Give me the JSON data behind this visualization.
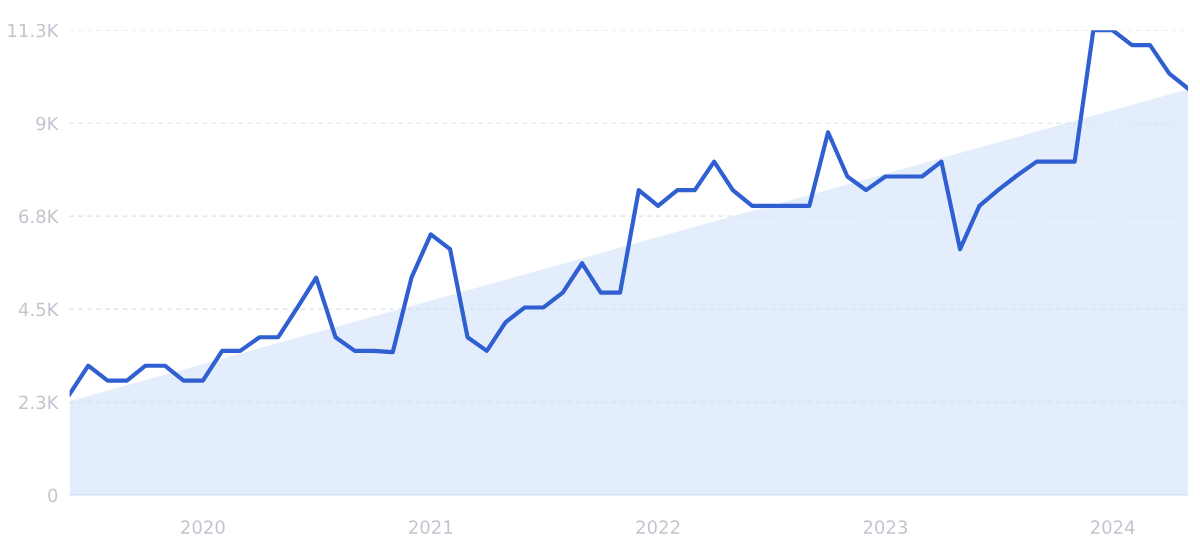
{
  "chart_data": {
    "type": "line",
    "x": [
      "2019-06",
      "2019-07",
      "2019-08",
      "2019-09",
      "2019-10",
      "2019-11",
      "2019-12",
      "2020-01",
      "2020-02",
      "2020-03",
      "2020-04",
      "2020-05",
      "2020-06",
      "2020-07",
      "2020-08",
      "2020-09",
      "2020-10",
      "2020-11",
      "2020-12",
      "2021-01",
      "2021-02",
      "2021-03",
      "2021-04",
      "2021-05",
      "2021-06",
      "2021-07",
      "2021-08",
      "2021-09",
      "2021-10",
      "2021-11",
      "2021-12",
      "2022-01",
      "2022-02",
      "2022-03",
      "2022-04",
      "2022-05",
      "2022-06",
      "2022-07",
      "2022-08",
      "2022-09",
      "2022-10",
      "2022-11",
      "2022-12",
      "2023-01",
      "2023-02",
      "2023-03",
      "2023-04",
      "2023-05",
      "2023-06",
      "2023-07",
      "2023-08",
      "2023-09",
      "2023-10",
      "2023-11",
      "2023-12",
      "2024-01",
      "2024-02",
      "2024-03",
      "2024-04",
      "2024-05"
    ],
    "series": [
      {
        "type": "area",
        "color": "#dce9fb",
        "x": [
          "2019-06",
          "2024-05"
        ],
        "values": [
          2270,
          9820
        ]
      },
      {
        "color": "#2f5fd0",
        "values": [
          2440,
          3130,
          2770,
          2770,
          3130,
          3130,
          2770,
          2770,
          3490,
          3490,
          3820,
          3820,
          4540,
          5260,
          3820,
          3490,
          3490,
          3460,
          5260,
          6310,
          5950,
          3820,
          3490,
          4180,
          4540,
          4540,
          4900,
          5610,
          4900,
          4900,
          7380,
          7000,
          7380,
          7380,
          8070,
          7380,
          7000,
          7000,
          7000,
          7000,
          8780,
          7710,
          7380,
          7710,
          7710,
          7710,
          8070,
          5950,
          7000,
          7380,
          7740,
          8070,
          8070,
          8070,
          11250,
          11250,
          10890,
          10890,
          10200,
          9840
        ]
      }
    ],
    "xlim": [
      "2019-06",
      "2024-05"
    ],
    "xticks": [
      {
        "value": "2020-01",
        "label": "2020"
      },
      {
        "value": "2021-01",
        "label": "2021"
      },
      {
        "value": "2022-01",
        "label": "2022"
      },
      {
        "value": "2023-01",
        "label": "2023"
      },
      {
        "value": "2024-01",
        "label": "2024"
      }
    ],
    "ylim": [
      0,
      11250
    ],
    "yticks": [
      0,
      {
        "value": 2250,
        "label": "2.3K"
      },
      {
        "value": 4500,
        "label": "4.5K"
      },
      {
        "value": 6750,
        "label": "6.8K"
      },
      {
        "value": 9000,
        "label": "9K"
      },
      {
        "value": 11250,
        "label": "11.3K"
      }
    ],
    "grid": "y",
    "marker": "none",
    "line_style": "solid"
  }
}
